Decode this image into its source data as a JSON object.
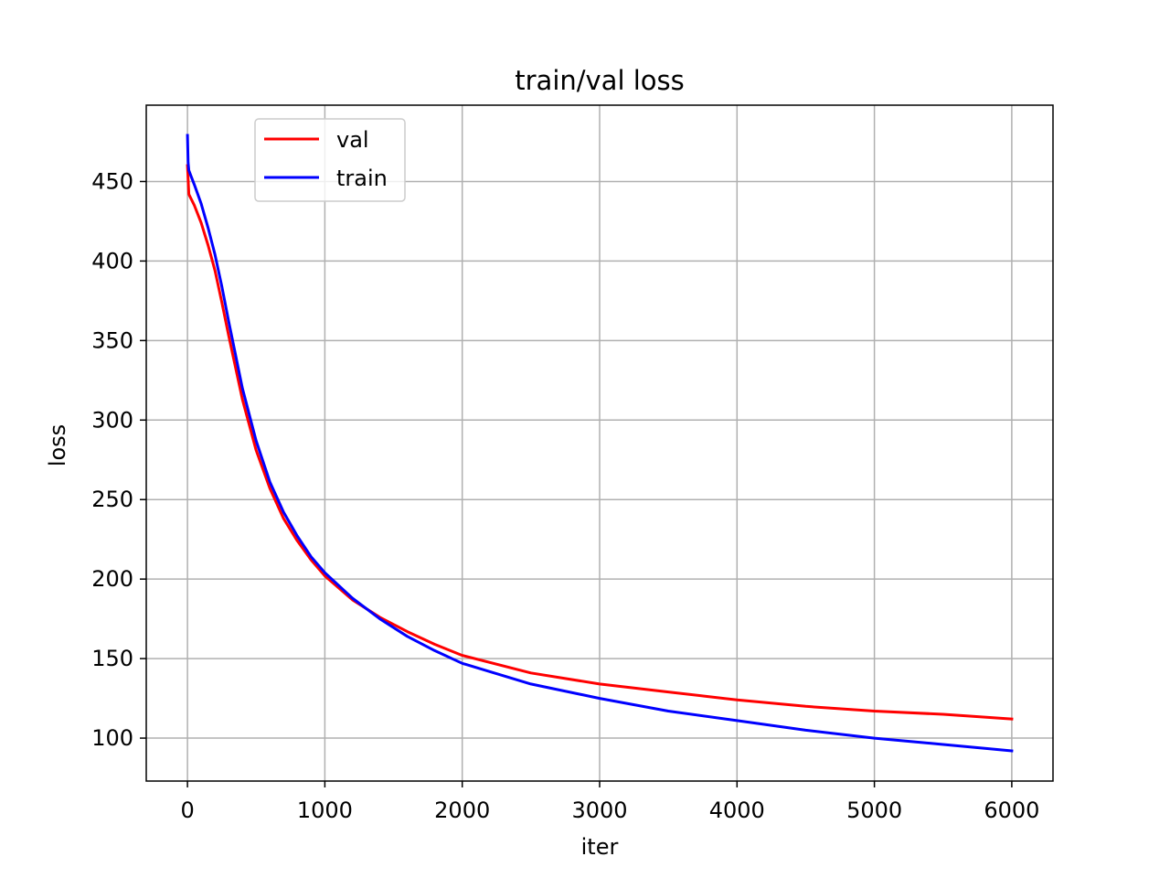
{
  "chart_data": {
    "type": "line",
    "title": "train/val loss",
    "xlabel": "iter",
    "ylabel": "loss",
    "xlim": [
      -300,
      6300
    ],
    "ylim": [
      73,
      498
    ],
    "xticks": [
      0,
      1000,
      2000,
      3000,
      4000,
      5000,
      6000
    ],
    "yticks": [
      100,
      150,
      200,
      250,
      300,
      350,
      400,
      450
    ],
    "grid": true,
    "legend_position": "upper left",
    "series": [
      {
        "name": "val",
        "color": "#ff0000",
        "x": [
          0,
          10,
          50,
          100,
          150,
          200,
          250,
          300,
          400,
          500,
          600,
          700,
          800,
          900,
          1000,
          1200,
          1400,
          1600,
          1800,
          2000,
          2500,
          3000,
          3500,
          4000,
          4500,
          5000,
          5500,
          6000
        ],
        "y": [
          460,
          442,
          435,
          424,
          410,
          394,
          374,
          353,
          313,
          281,
          257,
          238,
          224,
          212,
          202,
          187,
          176,
          167,
          159,
          152,
          141,
          134,
          129,
          124,
          120,
          117,
          115,
          112
        ]
      },
      {
        "name": "train",
        "color": "#0000ff",
        "x": [
          0,
          5,
          10,
          50,
          100,
          150,
          200,
          250,
          300,
          400,
          500,
          600,
          700,
          800,
          900,
          1000,
          1200,
          1400,
          1600,
          1800,
          2000,
          2500,
          3000,
          3500,
          4000,
          4500,
          5000,
          5500,
          6000
        ],
        "y": [
          479,
          462,
          457,
          448,
          436,
          421,
          404,
          384,
          362,
          320,
          287,
          261,
          242,
          227,
          214,
          204,
          188,
          175,
          164,
          155,
          147,
          134,
          125,
          117,
          111,
          105,
          100,
          96,
          92
        ]
      }
    ]
  }
}
